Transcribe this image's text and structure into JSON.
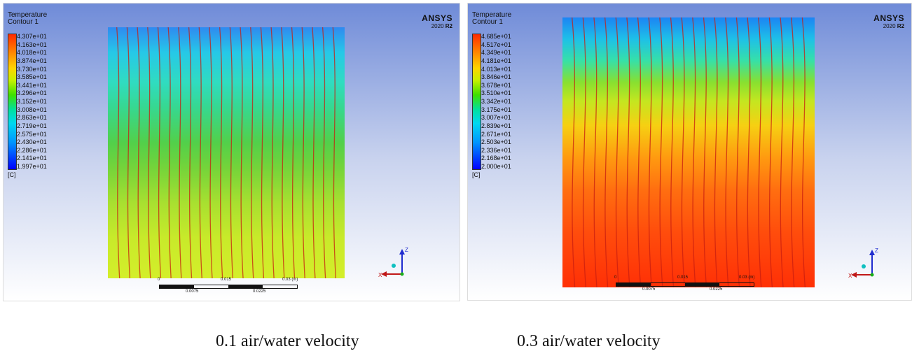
{
  "panels": [
    {
      "header": {
        "title": "Temperature",
        "subtitle": "Contour 1"
      },
      "logo": {
        "brand": "ANSYS",
        "version": "2020",
        "release": "R2"
      },
      "legend": {
        "values": [
          "4.307e+01",
          "4.163e+01",
          "4.018e+01",
          "3.874e+01",
          "3.730e+01",
          "3.585e+01",
          "3.441e+01",
          "3.296e+01",
          "3.152e+01",
          "3.008e+01",
          "2.863e+01",
          "2.719e+01",
          "2.575e+01",
          "2.430e+01",
          "2.286e+01",
          "2.141e+01",
          "1.997e+01"
        ],
        "unit": "[C]"
      },
      "scale": {
        "top_labels": [
          "0",
          "0.015",
          "0.03 (m)"
        ],
        "bottom_labels": [
          "0.0075",
          "0.0225"
        ]
      },
      "caption": "0.1 air/water velocity"
    },
    {
      "header": {
        "title": "Temperature",
        "subtitle": "Contour 1"
      },
      "logo": {
        "brand": "ANSYS",
        "version": "2020",
        "release": "R2"
      },
      "legend": {
        "values": [
          "4.685e+01",
          "4.517e+01",
          "4.349e+01",
          "4.181e+01",
          "4.013e+01",
          "3.846e+01",
          "3.678e+01",
          "3.510e+01",
          "3.342e+01",
          "3.175e+01",
          "3.007e+01",
          "2.839e+01",
          "2.671e+01",
          "2.503e+01",
          "2.336e+01",
          "2.168e+01",
          "2.000e+01"
        ],
        "unit": "[C]"
      },
      "scale": {
        "top_labels": [
          "0",
          "0.015",
          "0.03 (m)"
        ],
        "bottom_labels": [
          "0.0075",
          "0.0225"
        ]
      },
      "caption": "0.3 air/water velocity"
    }
  ],
  "axes": {
    "z": "Z",
    "x": "X"
  },
  "colors": {
    "streak": "#c81e10",
    "z_axis": "#1f2ccf",
    "x_axis": "#c01818",
    "origin": "#18b018",
    "y_dot": "#10c0c0"
  }
}
